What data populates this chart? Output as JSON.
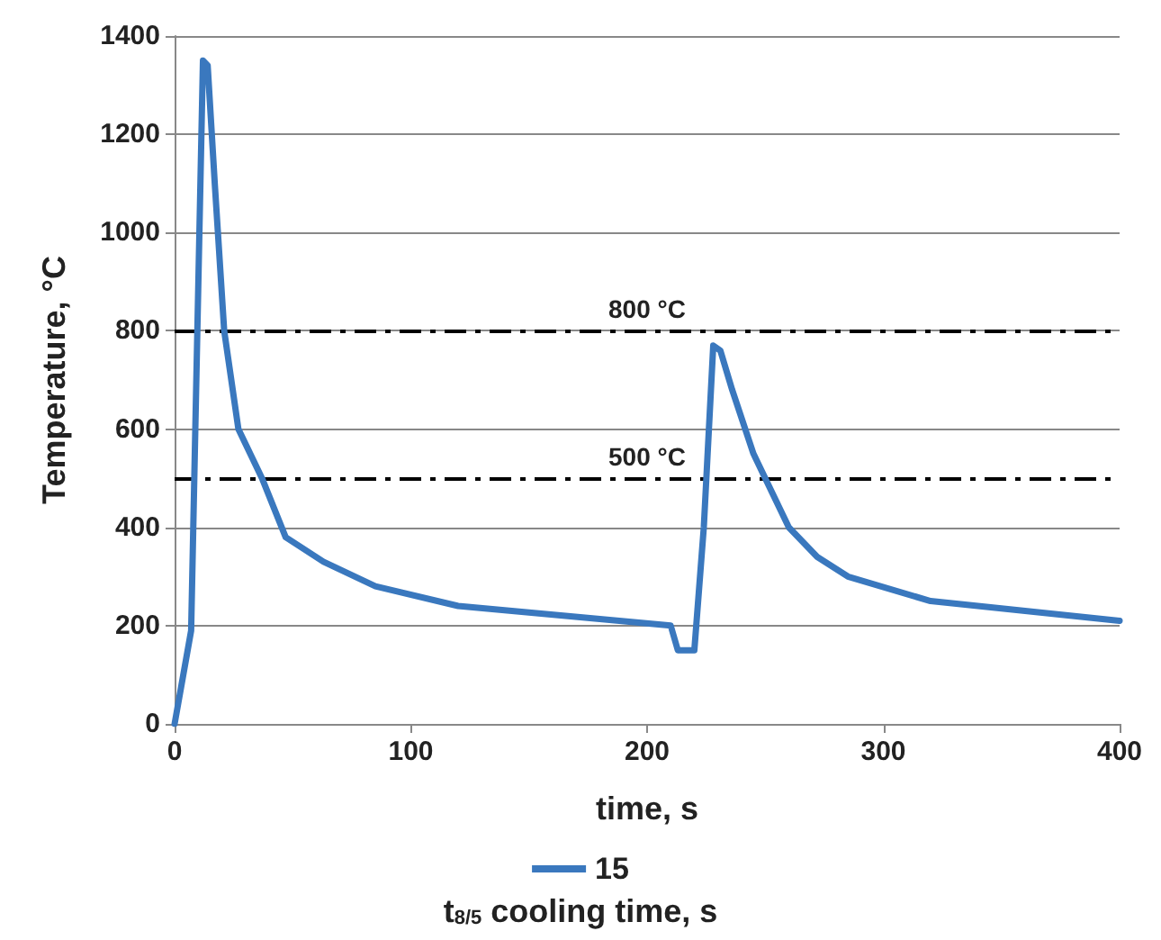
{
  "chart_data": {
    "type": "line",
    "xlabel": "time, s",
    "ylabel": "Temperature, °C",
    "legend_title": "t$_{8/5}$ cooling time, s",
    "legend": "bottom",
    "grid": "y",
    "marker": "none",
    "line_style": "solid",
    "xlim": [
      0,
      400
    ],
    "xticks": [
      0,
      100,
      200,
      300,
      400
    ],
    "ylim": [
      0,
      1400
    ],
    "yticks": [
      0,
      200,
      400,
      600,
      800,
      1000,
      1200,
      1400
    ],
    "ref_lines": [
      {
        "axis": "y",
        "value": 800,
        "label": "800 °C",
        "color": "#000000",
        "line_style": "dashdot"
      },
      {
        "axis": "y",
        "value": 500,
        "label": "500 °C",
        "color": "#000000",
        "line_style": "dashdot"
      }
    ],
    "series": [
      {
        "name": "15",
        "color": "#3a78be",
        "x": [
          0,
          7,
          12,
          14,
          17,
          21,
          27,
          37,
          47,
          63,
          85,
          120,
          210,
          213,
          215,
          220,
          224,
          228,
          231,
          236,
          245,
          260,
          272,
          285,
          320,
          400
        ],
        "values": [
          0,
          190,
          1350,
          1340,
          1100,
          800,
          600,
          500,
          380,
          330,
          280,
          240,
          200,
          150,
          150,
          150,
          400,
          770,
          760,
          680,
          550,
          400,
          340,
          300,
          250,
          210
        ]
      }
    ]
  }
}
